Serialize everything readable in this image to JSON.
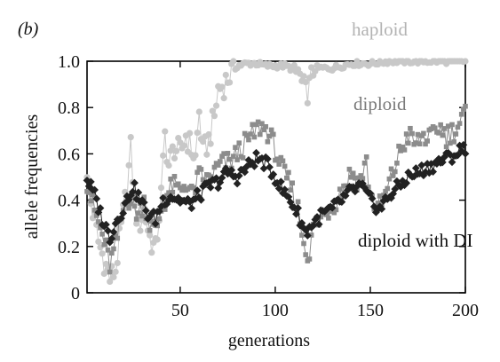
{
  "panel_label": "(b)",
  "chart_data": {
    "type": "line",
    "title": "",
    "xlabel": "generations",
    "ylabel": "allele frequencies",
    "xlim": [
      1,
      200
    ],
    "ylim": [
      0,
      1
    ],
    "x_ticks": [
      50,
      100,
      150,
      200
    ],
    "y_ticks": [
      0,
      0.2,
      0.4,
      0.6,
      0.8,
      1.0
    ],
    "y_tick_labels": [
      "0",
      "0.2",
      "0.4",
      "0.6",
      "0.8",
      "1.0"
    ],
    "grid": false,
    "legend": "inline labels next to series",
    "series": [
      {
        "name": "haploid",
        "label_color": "#b3b3b3",
        "color": "#c8c8c8",
        "marker": "circle",
        "knots": [
          [
            1,
            0.47
          ],
          [
            4,
            0.35
          ],
          [
            7,
            0.22
          ],
          [
            10,
            0.14
          ],
          [
            13,
            0.06
          ],
          [
            16,
            0.1
          ],
          [
            19,
            0.28
          ],
          [
            22,
            0.45
          ],
          [
            24,
            0.62
          ],
          [
            26,
            0.4
          ],
          [
            28,
            0.28
          ],
          [
            31,
            0.36
          ],
          [
            34,
            0.24
          ],
          [
            37,
            0.18
          ],
          [
            40,
            0.42
          ],
          [
            42,
            0.68
          ],
          [
            44,
            0.55
          ],
          [
            47,
            0.63
          ],
          [
            50,
            0.6
          ],
          [
            53,
            0.68
          ],
          [
            56,
            0.62
          ],
          [
            58,
            0.58
          ],
          [
            60,
            0.78
          ],
          [
            62,
            0.6
          ],
          [
            65,
            0.66
          ],
          [
            68,
            0.76
          ],
          [
            70,
            0.88
          ],
          [
            73,
            0.9
          ],
          [
            76,
            0.94
          ],
          [
            80,
            0.98
          ],
          [
            85,
            0.99
          ],
          [
            90,
            0.99
          ],
          [
            95,
            0.98
          ],
          [
            100,
            0.98
          ],
          [
            105,
            0.98
          ],
          [
            108,
            0.97
          ],
          [
            110,
            0.93
          ],
          [
            112,
            0.96
          ],
          [
            114,
            0.9
          ],
          [
            116,
            0.86
          ],
          [
            118,
            0.89
          ],
          [
            120,
            0.96
          ],
          [
            122,
            0.97
          ],
          [
            125,
            0.97
          ],
          [
            130,
            0.97
          ],
          [
            135,
            0.98
          ],
          [
            140,
            0.99
          ],
          [
            150,
            0.99
          ],
          [
            160,
            1.0
          ],
          [
            170,
            1.0
          ],
          [
            180,
            1.0
          ],
          [
            190,
            1.0
          ],
          [
            200,
            1.0
          ]
        ]
      },
      {
        "name": "diploid",
        "label_color": "#7a7a7a",
        "color": "#8c8c8c",
        "marker": "square",
        "knots": [
          [
            1,
            0.48
          ],
          [
            4,
            0.38
          ],
          [
            7,
            0.3
          ],
          [
            10,
            0.22
          ],
          [
            13,
            0.12
          ],
          [
            16,
            0.2
          ],
          [
            19,
            0.32
          ],
          [
            22,
            0.42
          ],
          [
            25,
            0.38
          ],
          [
            28,
            0.34
          ],
          [
            31,
            0.4
          ],
          [
            34,
            0.3
          ],
          [
            37,
            0.26
          ],
          [
            40,
            0.36
          ],
          [
            43,
            0.42
          ],
          [
            46,
            0.46
          ],
          [
            50,
            0.44
          ],
          [
            53,
            0.48
          ],
          [
            56,
            0.42
          ],
          [
            60,
            0.5
          ],
          [
            64,
            0.48
          ],
          [
            68,
            0.52
          ],
          [
            72,
            0.56
          ],
          [
            76,
            0.56
          ],
          [
            80,
            0.6
          ],
          [
            84,
            0.64
          ],
          [
            88,
            0.68
          ],
          [
            92,
            0.72
          ],
          [
            96,
            0.7
          ],
          [
            100,
            0.62
          ],
          [
            104,
            0.52
          ],
          [
            108,
            0.46
          ],
          [
            112,
            0.36
          ],
          [
            115,
            0.22
          ],
          [
            118,
            0.16
          ],
          [
            120,
            0.28
          ],
          [
            124,
            0.32
          ],
          [
            128,
            0.36
          ],
          [
            132,
            0.4
          ],
          [
            136,
            0.46
          ],
          [
            140,
            0.52
          ],
          [
            144,
            0.48
          ],
          [
            148,
            0.56
          ],
          [
            150,
            0.42
          ],
          [
            154,
            0.36
          ],
          [
            158,
            0.42
          ],
          [
            162,
            0.52
          ],
          [
            166,
            0.62
          ],
          [
            170,
            0.68
          ],
          [
            174,
            0.64
          ],
          [
            178,
            0.68
          ],
          [
            182,
            0.66
          ],
          [
            186,
            0.72
          ],
          [
            190,
            0.68
          ],
          [
            194,
            0.7
          ],
          [
            198,
            0.74
          ],
          [
            200,
            0.78
          ]
        ]
      },
      {
        "name": "diploid with DI",
        "label_color": "#111111",
        "color": "#222222",
        "marker": "diamond",
        "knots": [
          [
            1,
            0.49
          ],
          [
            5,
            0.42
          ],
          [
            9,
            0.32
          ],
          [
            13,
            0.24
          ],
          [
            17,
            0.32
          ],
          [
            21,
            0.38
          ],
          [
            25,
            0.46
          ],
          [
            29,
            0.4
          ],
          [
            33,
            0.34
          ],
          [
            37,
            0.32
          ],
          [
            41,
            0.4
          ],
          [
            45,
            0.42
          ],
          [
            50,
            0.4
          ],
          [
            55,
            0.38
          ],
          [
            60,
            0.42
          ],
          [
            65,
            0.46
          ],
          [
            70,
            0.48
          ],
          [
            75,
            0.52
          ],
          [
            80,
            0.5
          ],
          [
            85,
            0.54
          ],
          [
            90,
            0.58
          ],
          [
            95,
            0.56
          ],
          [
            100,
            0.5
          ],
          [
            104,
            0.44
          ],
          [
            108,
            0.4
          ],
          [
            112,
            0.34
          ],
          [
            116,
            0.26
          ],
          [
            120,
            0.3
          ],
          [
            125,
            0.34
          ],
          [
            130,
            0.36
          ],
          [
            135,
            0.4
          ],
          [
            140,
            0.44
          ],
          [
            145,
            0.46
          ],
          [
            150,
            0.4
          ],
          [
            155,
            0.36
          ],
          [
            160,
            0.42
          ],
          [
            165,
            0.46
          ],
          [
            170,
            0.5
          ],
          [
            175,
            0.52
          ],
          [
            180,
            0.54
          ],
          [
            185,
            0.56
          ],
          [
            190,
            0.58
          ],
          [
            195,
            0.6
          ],
          [
            200,
            0.63
          ]
        ]
      }
    ]
  }
}
